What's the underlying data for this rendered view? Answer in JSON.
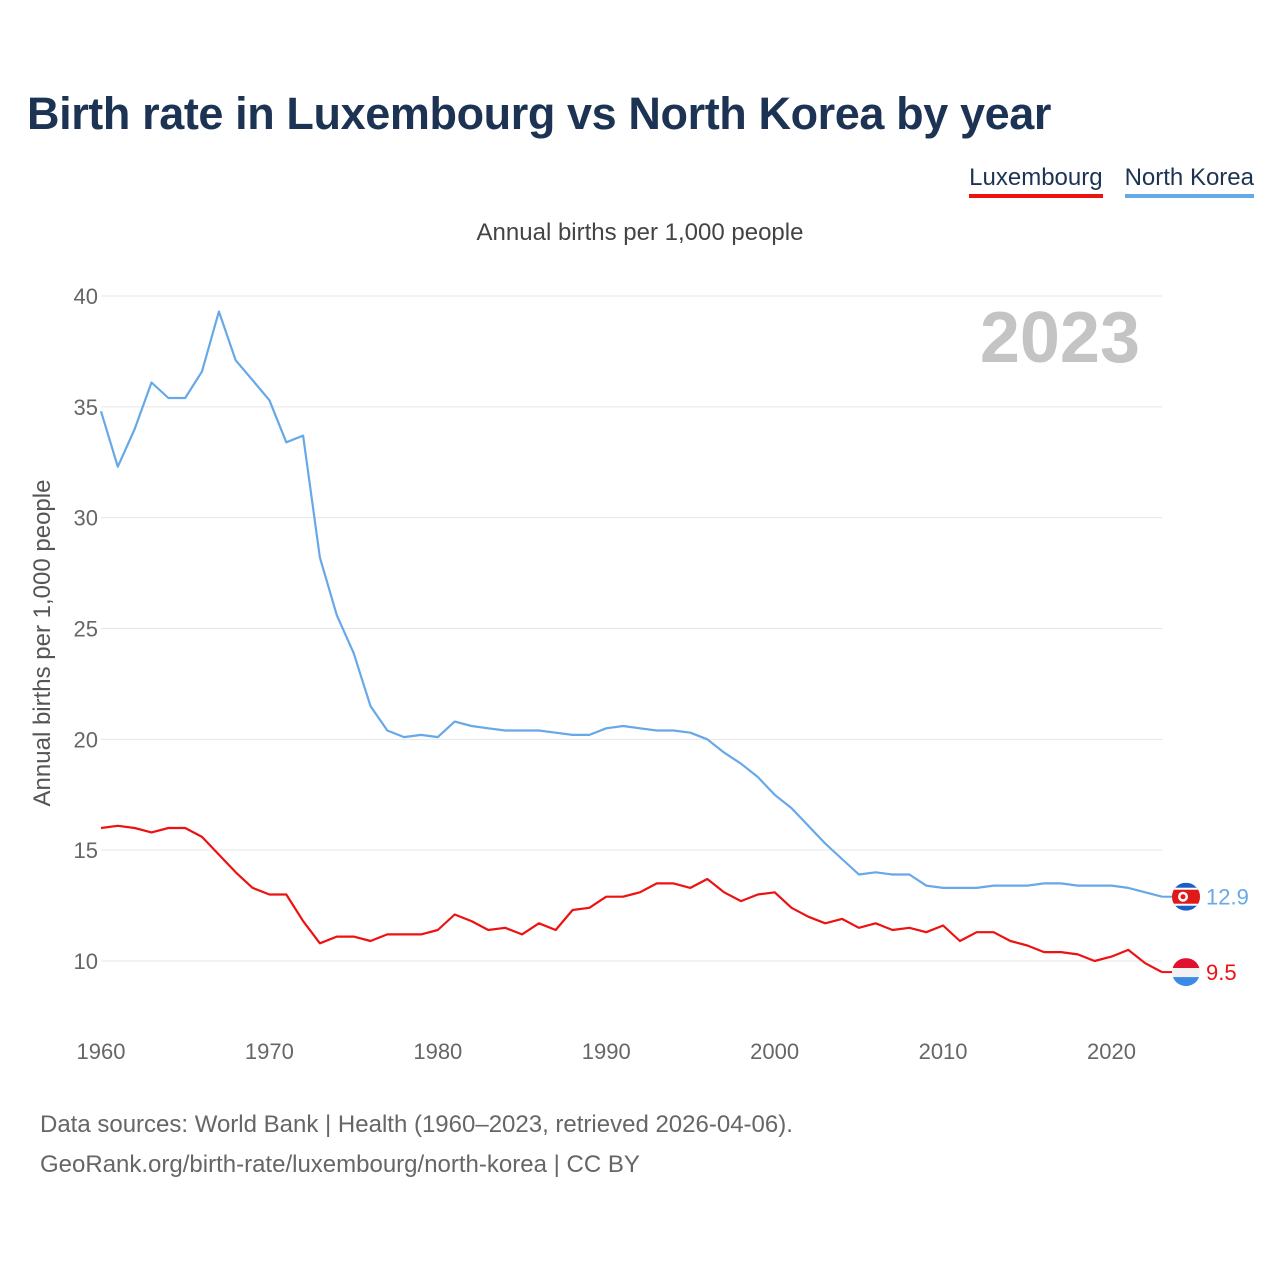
{
  "title": "Birth rate in Luxembourg vs North Korea by year",
  "legend": [
    {
      "label": "Luxembourg",
      "color": "#ee1111"
    },
    {
      "label": "North Korea",
      "color": "#66a8e8"
    }
  ],
  "footer": {
    "line1": "Data sources: World Bank | Health (1960–2023, retrieved 2026-04-06).",
    "line2": "GeoRank.org/birth-rate/luxembourg/north-korea | CC BY"
  },
  "chart_data": {
    "type": "line",
    "title": "Annual births per 1,000 people",
    "ylabel": "Annual births per 1,000 people",
    "xlabel": "",
    "year_watermark": "2023",
    "xlim": [
      1960,
      2023
    ],
    "ylim": [
      10,
      40
    ],
    "xticks": [
      1960,
      1970,
      1980,
      1990,
      2000,
      2010,
      2020
    ],
    "yticks": [
      10,
      15,
      20,
      25,
      30,
      35,
      40
    ],
    "x": [
      1960,
      1961,
      1962,
      1963,
      1964,
      1965,
      1966,
      1967,
      1968,
      1969,
      1970,
      1971,
      1972,
      1973,
      1974,
      1975,
      1976,
      1977,
      1978,
      1979,
      1980,
      1981,
      1982,
      1983,
      1984,
      1985,
      1986,
      1987,
      1988,
      1989,
      1990,
      1991,
      1992,
      1993,
      1994,
      1995,
      1996,
      1997,
      1998,
      1999,
      2000,
      2001,
      2002,
      2003,
      2004,
      2005,
      2006,
      2007,
      2008,
      2009,
      2010,
      2011,
      2012,
      2013,
      2014,
      2015,
      2016,
      2017,
      2018,
      2019,
      2020,
      2021,
      2022,
      2023
    ],
    "series": [
      {
        "name": "Luxembourg",
        "color": "#ee1111",
        "end_label": "9.5",
        "values": [
          16.0,
          16.1,
          16.0,
          15.8,
          16.0,
          16.0,
          15.6,
          14.8,
          14.0,
          13.3,
          13.0,
          13.0,
          11.8,
          10.8,
          11.1,
          11.1,
          10.9,
          11.2,
          11.2,
          11.2,
          11.4,
          12.1,
          11.8,
          11.4,
          11.5,
          11.2,
          11.7,
          11.4,
          12.3,
          12.4,
          12.9,
          12.9,
          13.1,
          13.5,
          13.5,
          13.3,
          13.7,
          13.1,
          12.7,
          13.0,
          13.1,
          12.4,
          12.0,
          11.7,
          11.9,
          11.5,
          11.7,
          11.4,
          11.5,
          11.3,
          11.6,
          10.9,
          11.3,
          11.3,
          10.9,
          10.7,
          10.4,
          10.4,
          10.3,
          10.0,
          10.2,
          10.5,
          9.9,
          9.5
        ]
      },
      {
        "name": "North Korea",
        "color": "#66a8e8",
        "end_label": "12.9",
        "values": [
          34.8,
          32.3,
          34.0,
          36.1,
          35.4,
          35.4,
          36.6,
          39.3,
          37.1,
          36.2,
          35.3,
          33.4,
          33.7,
          28.2,
          25.6,
          23.9,
          21.5,
          20.4,
          20.1,
          20.2,
          20.1,
          20.8,
          20.6,
          20.5,
          20.4,
          20.4,
          20.4,
          20.3,
          20.2,
          20.2,
          20.5,
          20.6,
          20.5,
          20.4,
          20.4,
          20.3,
          20.0,
          19.4,
          18.9,
          18.3,
          17.5,
          16.9,
          16.1,
          15.3,
          14.6,
          13.9,
          14.0,
          13.9,
          13.9,
          13.4,
          13.3,
          13.3,
          13.3,
          13.4,
          13.4,
          13.4,
          13.5,
          13.5,
          13.4,
          13.4,
          13.4,
          13.3,
          13.1,
          12.9
        ]
      }
    ]
  }
}
